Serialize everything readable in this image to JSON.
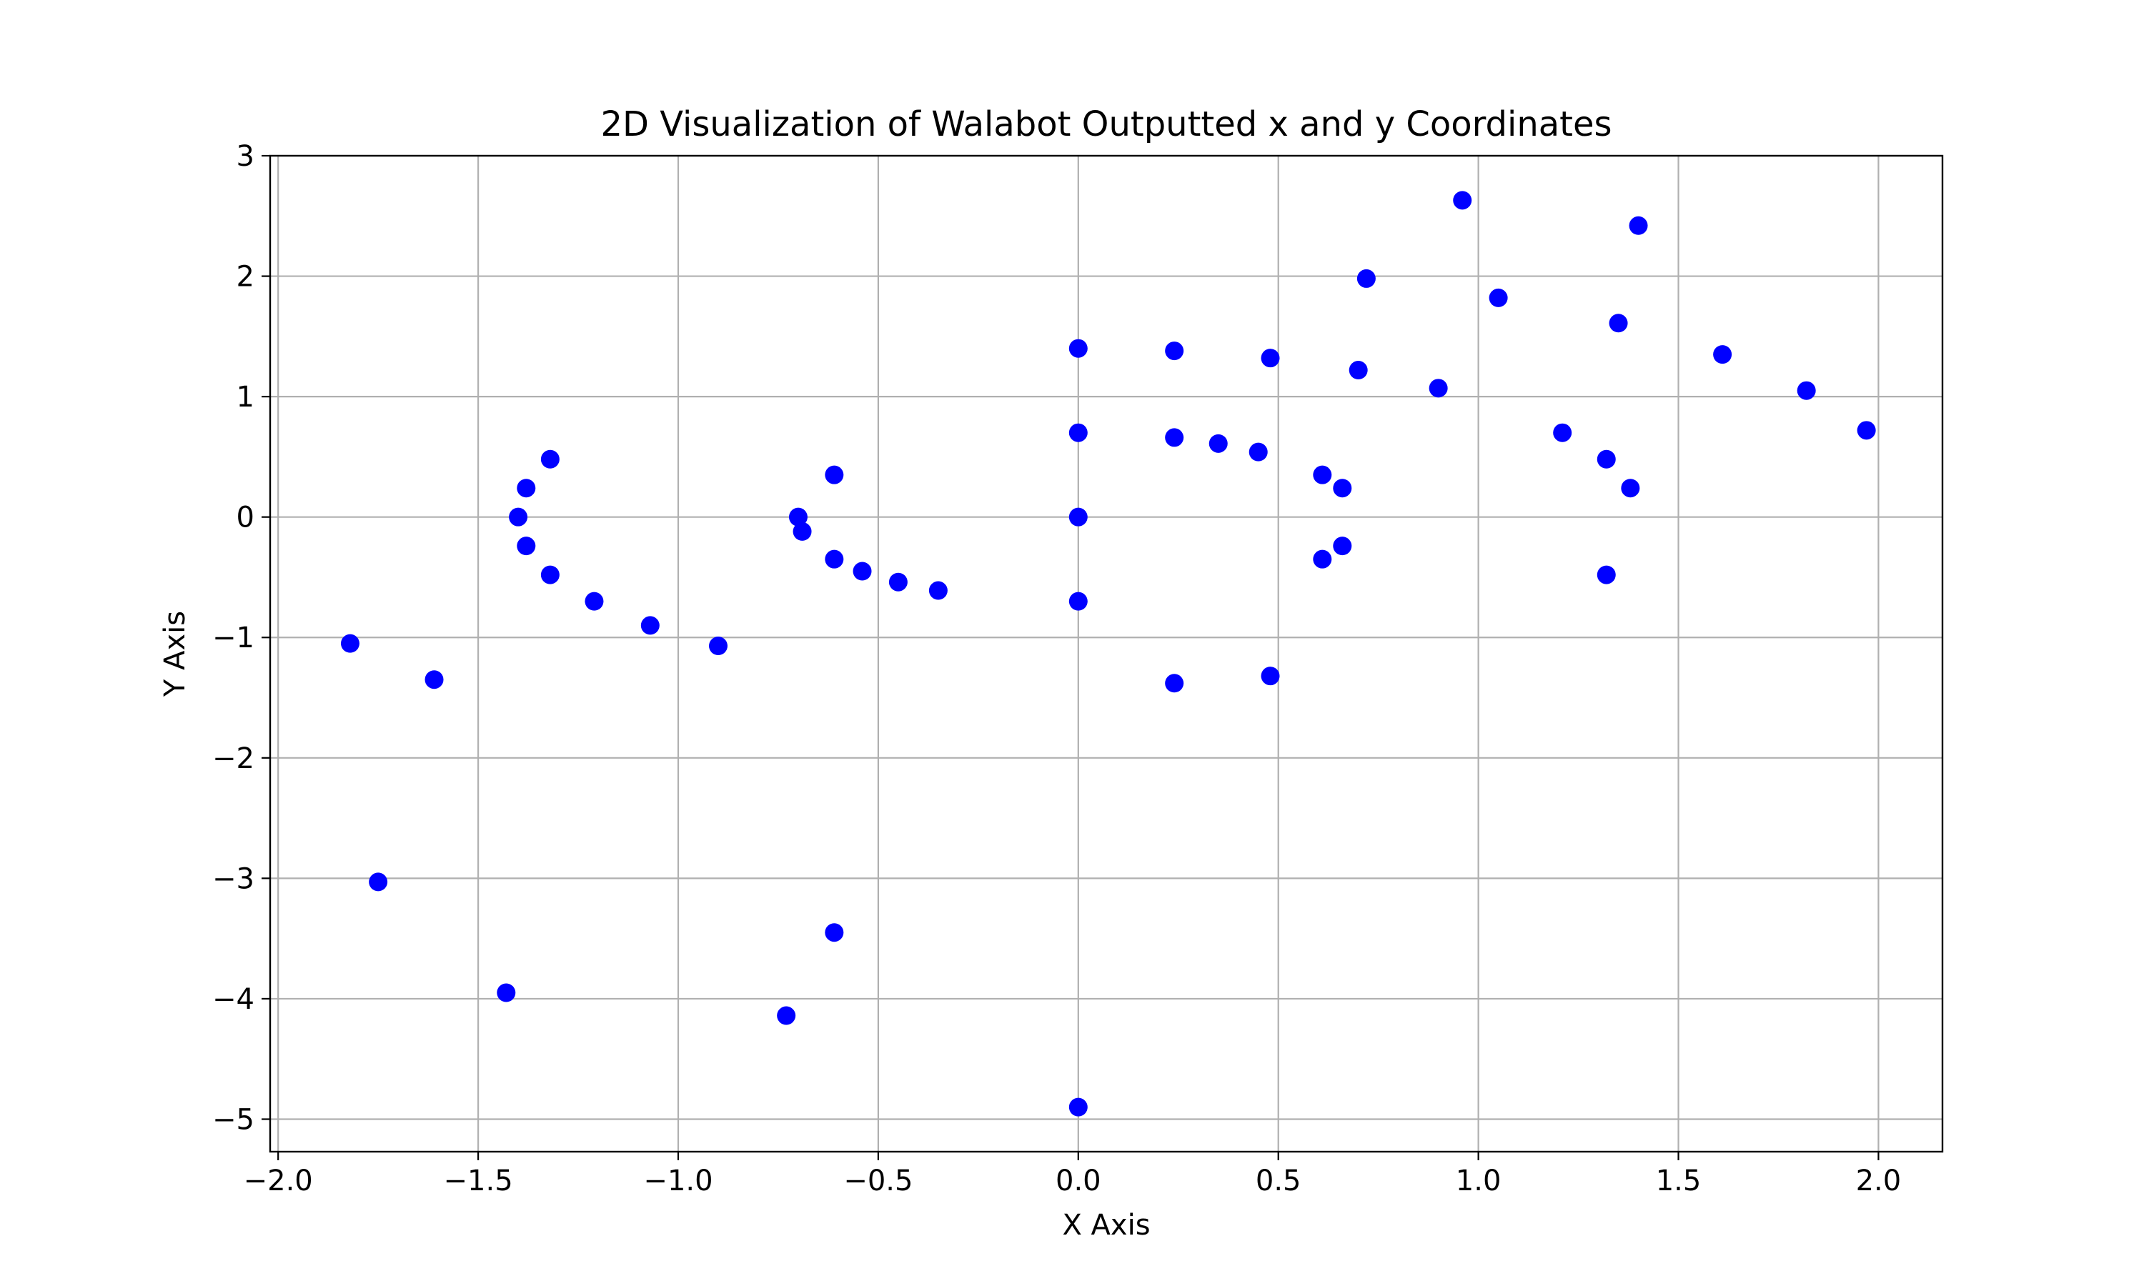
{
  "chart_data": {
    "type": "scatter",
    "title": "2D Visualization of Walabot Outputted x and y Coordinates",
    "xlabel": "X Axis",
    "ylabel": "Y Axis",
    "xlim": [
      -2.02,
      2.16
    ],
    "ylim": [
      -5.27,
      3.0
    ],
    "x_ticks": [
      -2.0,
      -1.5,
      -1.0,
      -0.5,
      0.0,
      0.5,
      1.0,
      1.5,
      2.0
    ],
    "x_tick_labels": [
      "−2.0",
      "−1.5",
      "−1.0",
      "−0.5",
      "0.0",
      "0.5",
      "1.0",
      "1.5",
      "2.0"
    ],
    "y_ticks": [
      -5,
      -4,
      -3,
      -2,
      -1,
      0,
      1,
      2,
      3
    ],
    "y_tick_labels": [
      "−5",
      "−4",
      "−3",
      "−2",
      "−1",
      "0",
      "1",
      "2",
      "3"
    ],
    "grid": true,
    "marker_color": "#0000ff",
    "points": [
      {
        "x": -1.82,
        "y": -1.05
      },
      {
        "x": -1.61,
        "y": -1.35
      },
      {
        "x": -1.75,
        "y": -3.03
      },
      {
        "x": -1.43,
        "y": -3.95
      },
      {
        "x": -1.4,
        "y": 0.0
      },
      {
        "x": -1.38,
        "y": 0.24
      },
      {
        "x": -1.38,
        "y": -0.24
      },
      {
        "x": -1.32,
        "y": 0.48
      },
      {
        "x": -1.32,
        "y": -0.48
      },
      {
        "x": -1.21,
        "y": -0.7
      },
      {
        "x": -1.07,
        "y": -0.9
      },
      {
        "x": -0.9,
        "y": -1.07
      },
      {
        "x": -0.73,
        "y": -4.14
      },
      {
        "x": -0.7,
        "y": 0.0
      },
      {
        "x": -0.69,
        "y": -0.12
      },
      {
        "x": -0.61,
        "y": 0.35
      },
      {
        "x": -0.61,
        "y": -0.35
      },
      {
        "x": -0.61,
        "y": -3.45
      },
      {
        "x": -0.54,
        "y": -0.45
      },
      {
        "x": -0.45,
        "y": -0.54
      },
      {
        "x": -0.35,
        "y": -0.61
      },
      {
        "x": 0.0,
        "y": 1.4
      },
      {
        "x": 0.0,
        "y": 0.7
      },
      {
        "x": 0.0,
        "y": 0.0
      },
      {
        "x": 0.0,
        "y": -0.7
      },
      {
        "x": 0.0,
        "y": -4.9
      },
      {
        "x": 0.24,
        "y": 1.38
      },
      {
        "x": 0.24,
        "y": 0.66
      },
      {
        "x": 0.24,
        "y": -1.38
      },
      {
        "x": 0.35,
        "y": 0.61
      },
      {
        "x": 0.45,
        "y": 0.54
      },
      {
        "x": 0.48,
        "y": 1.32
      },
      {
        "x": 0.48,
        "y": -1.32
      },
      {
        "x": 0.61,
        "y": 0.35
      },
      {
        "x": 0.61,
        "y": -0.35
      },
      {
        "x": 0.66,
        "y": 0.24
      },
      {
        "x": 0.66,
        "y": -0.24
      },
      {
        "x": 0.7,
        "y": 1.22
      },
      {
        "x": 0.72,
        "y": 1.98
      },
      {
        "x": 0.9,
        "y": 1.07
      },
      {
        "x": 0.96,
        "y": 2.63
      },
      {
        "x": 1.05,
        "y": 1.82
      },
      {
        "x": 1.21,
        "y": 0.7
      },
      {
        "x": 1.32,
        "y": 0.48
      },
      {
        "x": 1.32,
        "y": -0.48
      },
      {
        "x": 1.35,
        "y": 1.61
      },
      {
        "x": 1.38,
        "y": 0.24
      },
      {
        "x": 1.4,
        "y": 2.42
      },
      {
        "x": 1.61,
        "y": 1.35
      },
      {
        "x": 1.82,
        "y": 1.05
      },
      {
        "x": 1.97,
        "y": 0.72
      }
    ]
  }
}
